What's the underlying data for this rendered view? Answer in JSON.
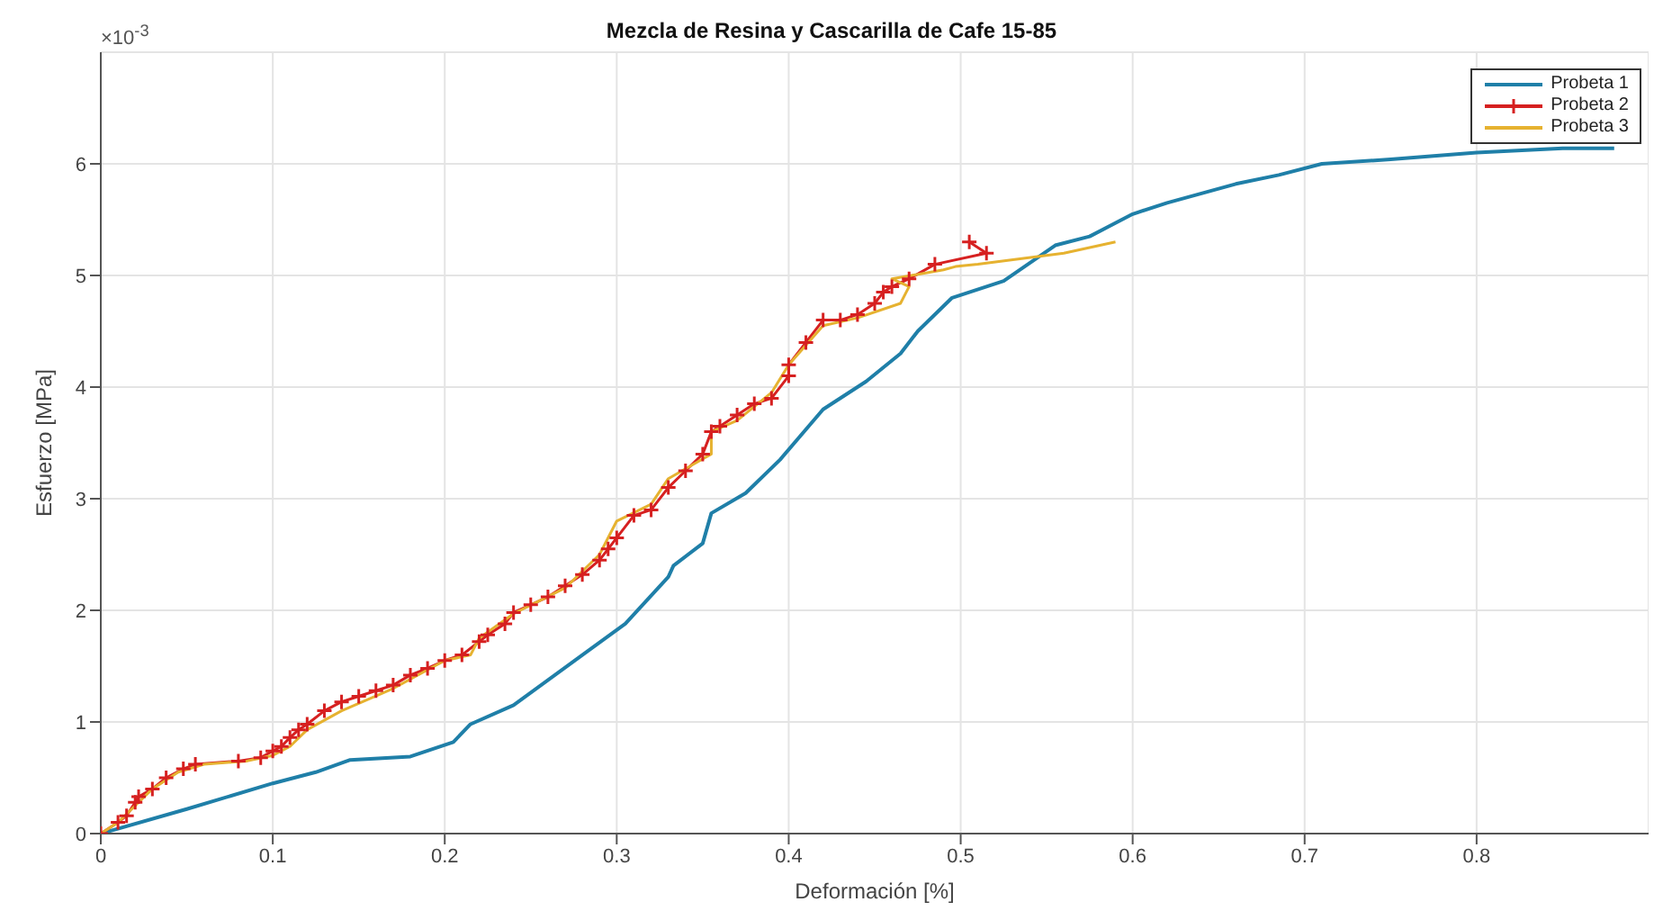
{
  "chart_data": {
    "type": "line",
    "title": "Mezcla de Resina y Cascarilla de Cafe 15-85",
    "xlabel": "Deformación [%]",
    "ylabel": "Esfuerzo [MPa]",
    "annotations": [
      "×10$^{-3}$"
    ],
    "xlim": [
      0,
      0.9
    ],
    "xticks": [
      0,
      0.1,
      0.2,
      0.3,
      0.4,
      0.5,
      0.6,
      0.7,
      0.8
    ],
    "ylim": [
      0,
      7
    ],
    "yticks": [
      0,
      1,
      2,
      3,
      4,
      5,
      6
    ],
    "grid": true,
    "legend": "top right",
    "line_style": "solid",
    "series": [
      {
        "name": "Probeta 1",
        "color": "#1f7fa8",
        "marker": "none",
        "x": [
          0,
          0.05,
          0.1,
          0.125,
          0.145,
          0.18,
          0.205,
          0.215,
          0.24,
          0.28,
          0.305,
          0.33,
          0.333,
          0.35,
          0.355,
          0.375,
          0.395,
          0.42,
          0.445,
          0.465,
          0.475,
          0.495,
          0.525,
          0.555,
          0.575,
          0.6,
          0.62,
          0.66,
          0.685,
          0.71,
          0.75,
          0.8,
          0.85,
          0.88
        ],
        "values": [
          0,
          0.22,
          0.45,
          0.55,
          0.66,
          0.69,
          0.82,
          0.98,
          1.15,
          1.6,
          1.88,
          2.3,
          2.4,
          2.6,
          2.87,
          3.05,
          3.35,
          3.8,
          4.05,
          4.3,
          4.5,
          4.8,
          4.95,
          5.27,
          5.35,
          5.55,
          5.65,
          5.82,
          5.9,
          6,
          6.04,
          6.1,
          6.14,
          6.14
        ]
      },
      {
        "name": "Probeta 2",
        "color": "#d62020",
        "marker": "cross",
        "x": [
          0,
          0.01,
          0.015,
          0.02,
          0.022,
          0.03,
          0.038,
          0.048,
          0.055,
          0.08,
          0.093,
          0.1,
          0.105,
          0.11,
          0.115,
          0.12,
          0.13,
          0.14,
          0.15,
          0.16,
          0.17,
          0.18,
          0.19,
          0.2,
          0.21,
          0.22,
          0.225,
          0.235,
          0.24,
          0.25,
          0.26,
          0.27,
          0.28,
          0.29,
          0.295,
          0.3,
          0.31,
          0.32,
          0.33,
          0.34,
          0.35,
          0.355,
          0.36,
          0.37,
          0.38,
          0.39,
          0.4,
          0.4,
          0.41,
          0.42,
          0.43,
          0.44,
          0.45,
          0.455,
          0.46,
          0.47,
          0.485,
          0.515,
          0.505
        ],
        "values": [
          0,
          0.1,
          0.16,
          0.28,
          0.33,
          0.4,
          0.5,
          0.58,
          0.62,
          0.65,
          0.68,
          0.74,
          0.78,
          0.86,
          0.93,
          0.98,
          1.1,
          1.18,
          1.23,
          1.28,
          1.33,
          1.42,
          1.48,
          1.55,
          1.6,
          1.72,
          1.78,
          1.88,
          1.98,
          2.05,
          2.12,
          2.22,
          2.32,
          2.45,
          2.55,
          2.65,
          2.85,
          2.9,
          3.1,
          3.25,
          3.4,
          3.6,
          3.65,
          3.75,
          3.85,
          3.9,
          4.1,
          4.2,
          4.4,
          4.6,
          4.6,
          4.65,
          4.75,
          4.85,
          4.9,
          4.97,
          5.1,
          5.2,
          5.3
        ]
      },
      {
        "name": "Probeta 3",
        "color": "#e6b230",
        "marker": "none",
        "x": [
          0,
          0.01,
          0.02,
          0.03,
          0.045,
          0.06,
          0.085,
          0.1,
          0.11,
          0.12,
          0.14,
          0.17,
          0.2,
          0.215,
          0.22,
          0.24,
          0.27,
          0.29,
          0.3,
          0.32,
          0.33,
          0.355,
          0.355,
          0.37,
          0.39,
          0.4,
          0.42,
          0.44,
          0.465,
          0.47,
          0.46,
          0.49,
          0.497,
          0.51,
          0.56,
          0.59
        ],
        "values": [
          0,
          0.1,
          0.25,
          0.4,
          0.55,
          0.62,
          0.65,
          0.7,
          0.78,
          0.93,
          1.1,
          1.3,
          1.55,
          1.6,
          1.75,
          1.97,
          2.2,
          2.5,
          2.8,
          2.95,
          3.18,
          3.4,
          3.6,
          3.7,
          3.95,
          4.2,
          4.55,
          4.62,
          4.75,
          4.9,
          4.97,
          5.05,
          5.08,
          5.1,
          5.2,
          5.3
        ]
      }
    ]
  }
}
